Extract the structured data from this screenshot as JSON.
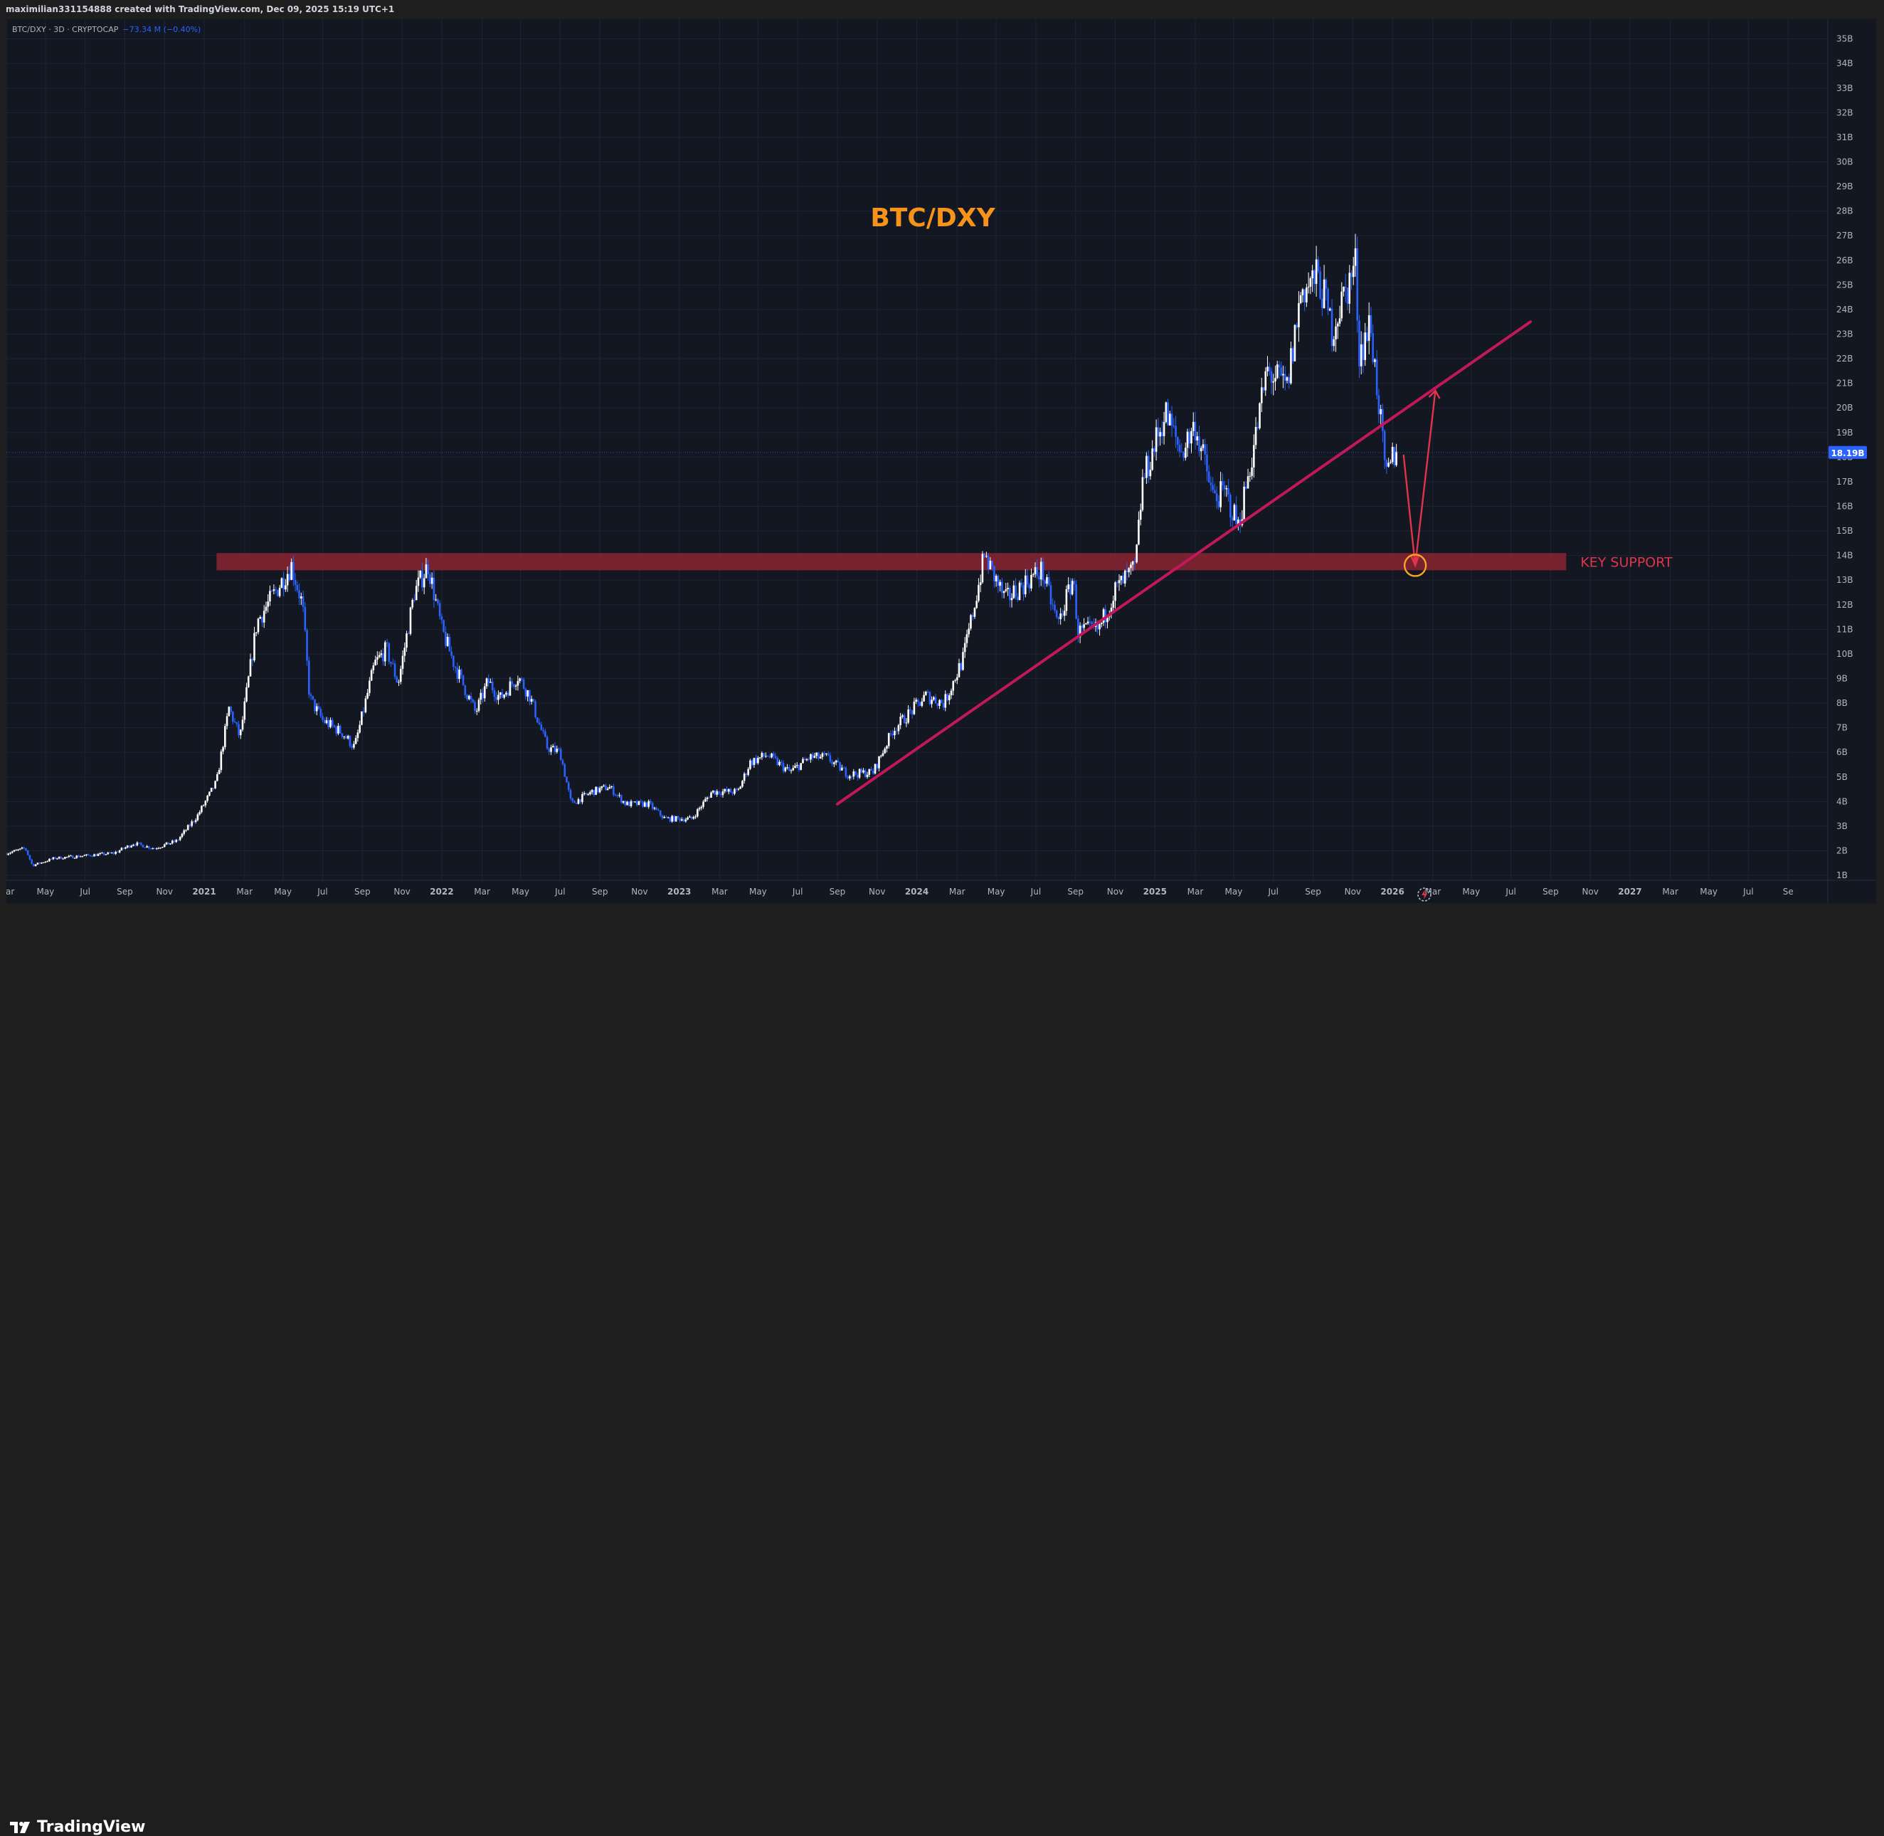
{
  "header": {
    "credit": "maximilian331154888 created with TradingView.com, Dec 09, 2025 15:19 UTC+1"
  },
  "legend": {
    "symbol": "BTC/DXY · 3D · CRYPTOCAP",
    "change": "−73.34 M (−0.40%)"
  },
  "footer": {
    "brand": "TradingView",
    "logo_icon": "tradingview-logo-icon"
  },
  "colors": {
    "background": "#131722",
    "candle_up": "#ffffff",
    "candle_down": "#2962ff",
    "support_zone": "#8b2433",
    "trendline": "#c2185b",
    "arrow": "#e0344a",
    "title": "#f7931a",
    "circle": "#f5a623",
    "price_tag": "#2962ff"
  },
  "chart_data": {
    "type": "candlestick",
    "title": "BTC/DXY",
    "y_unit": "B",
    "ylim": [
      0.8,
      35.8
    ],
    "y_ticks": [
      "35B",
      "34B",
      "33B",
      "32B",
      "31B",
      "30B",
      "29B",
      "28B",
      "27B",
      "26B",
      "25B",
      "24B",
      "23B",
      "22B",
      "21B",
      "20B",
      "19B",
      "18B",
      "17B",
      "16B",
      "15B",
      "14B",
      "13B",
      "12B",
      "11B",
      "10B",
      "9B",
      "8B",
      "7B",
      "6B",
      "5B",
      "4B",
      "3B",
      "2B",
      "1B"
    ],
    "x_ticks": [
      "Mar",
      "May",
      "Jul",
      "Sep",
      "Nov",
      "2021",
      "Mar",
      "May",
      "Jul",
      "Sep",
      "Nov",
      "2022",
      "Mar",
      "May",
      "Jul",
      "Sep",
      "Nov",
      "2023",
      "Mar",
      "May",
      "Jul",
      "Sep",
      "Nov",
      "2024",
      "Mar",
      "May",
      "Jul",
      "Sep",
      "Nov",
      "2025",
      "Mar",
      "May",
      "Jul",
      "Sep",
      "Nov",
      "2026",
      "Mar",
      "May",
      "Jul",
      "Sep",
      "Nov",
      "2027",
      "Mar",
      "May",
      "Jul",
      "Se"
    ],
    "x_start": "2020-02-01",
    "x_end": "2027-10-01",
    "current_price_label": "18.19B",
    "current_price": 18.19,
    "price_path": [
      [
        "2020-02-01",
        1.9
      ],
      [
        "2020-03-01",
        2.1
      ],
      [
        "2020-03-12",
        1.4
      ],
      [
        "2020-04-15",
        1.7
      ],
      [
        "2020-06-01",
        1.8
      ],
      [
        "2020-07-15",
        1.9
      ],
      [
        "2020-08-15",
        2.3
      ],
      [
        "2020-09-15",
        2.1
      ],
      [
        "2020-10-20",
        2.4
      ],
      [
        "2020-11-20",
        3.4
      ],
      [
        "2020-12-20",
        4.8
      ],
      [
        "2021-01-08",
        7.8
      ],
      [
        "2021-01-25",
        6.6
      ],
      [
        "2021-02-20",
        11.3
      ],
      [
        "2021-03-15",
        12.3
      ],
      [
        "2021-04-14",
        13.6
      ],
      [
        "2021-05-01",
        12.0
      ],
      [
        "2021-05-12",
        8.2
      ],
      [
        "2021-06-01",
        7.3
      ],
      [
        "2021-07-01",
        6.8
      ],
      [
        "2021-07-20",
        6.2
      ],
      [
        "2021-08-20",
        9.6
      ],
      [
        "2021-09-07",
        10.2
      ],
      [
        "2021-09-25",
        8.8
      ],
      [
        "2021-10-20",
        12.5
      ],
      [
        "2021-11-10",
        13.6
      ],
      [
        "2021-12-01",
        11.0
      ],
      [
        "2021-12-20",
        9.6
      ],
      [
        "2022-01-22",
        7.6
      ],
      [
        "2022-02-10",
        8.9
      ],
      [
        "2022-03-01",
        8.2
      ],
      [
        "2022-03-28",
        9.1
      ],
      [
        "2022-04-15",
        8.3
      ],
      [
        "2022-05-12",
        6.2
      ],
      [
        "2022-06-01",
        6.0
      ],
      [
        "2022-06-18",
        3.9
      ],
      [
        "2022-07-20",
        4.4
      ],
      [
        "2022-08-15",
        4.6
      ],
      [
        "2022-09-10",
        3.9
      ],
      [
        "2022-10-15",
        3.9
      ],
      [
        "2022-11-09",
        3.3
      ],
      [
        "2022-12-20",
        3.3
      ],
      [
        "2023-01-20",
        4.4
      ],
      [
        "2023-03-01",
        4.4
      ],
      [
        "2023-03-20",
        5.6
      ],
      [
        "2023-04-15",
        5.9
      ],
      [
        "2023-05-20",
        5.2
      ],
      [
        "2023-06-20",
        5.8
      ],
      [
        "2023-07-15",
        5.8
      ],
      [
        "2023-08-18",
        5.1
      ],
      [
        "2023-09-25",
        5.2
      ],
      [
        "2023-10-25",
        6.9
      ],
      [
        "2023-11-20",
        7.6
      ],
      [
        "2023-12-15",
        8.3
      ],
      [
        "2024-01-12",
        8.0
      ],
      [
        "2024-02-10",
        9.8
      ],
      [
        "2024-03-01",
        12.3
      ],
      [
        "2024-03-14",
        14.0
      ],
      [
        "2024-04-15",
        12.2
      ],
      [
        "2024-05-20",
        13.0
      ],
      [
        "2024-06-10",
        13.4
      ],
      [
        "2024-07-05",
        11.2
      ],
      [
        "2024-07-28",
        13.1
      ],
      [
        "2024-08-05",
        10.9
      ],
      [
        "2024-09-06",
        11.0
      ],
      [
        "2024-10-01",
        12.6
      ],
      [
        "2024-11-01",
        13.5
      ],
      [
        "2024-11-12",
        17.0
      ],
      [
        "2024-12-17",
        19.8
      ],
      [
        "2025-01-10",
        18.2
      ],
      [
        "2025-02-01",
        19.3
      ],
      [
        "2025-02-28",
        16.4
      ],
      [
        "2025-03-20",
        16.5
      ],
      [
        "2025-04-08",
        15.2
      ],
      [
        "2025-05-01",
        18.3
      ],
      [
        "2025-05-22",
        21.5
      ],
      [
        "2025-06-22",
        20.8
      ],
      [
        "2025-07-14",
        24.8
      ],
      [
        "2025-08-10",
        25.3
      ],
      [
        "2025-08-30",
        23.2
      ],
      [
        "2025-10-06",
        25.9
      ],
      [
        "2025-10-10",
        22.2
      ],
      [
        "2025-10-28",
        23.4
      ],
      [
        "2025-11-10",
        20.2
      ],
      [
        "2025-11-21",
        17.0
      ],
      [
        "2025-12-01",
        18.0
      ],
      [
        "2025-12-09",
        18.19
      ]
    ],
    "annotations": {
      "support_zone": {
        "y_low": 13.4,
        "y_high": 14.1,
        "x_start": "2020-12-20",
        "x_end": "2026-08-25",
        "label": "KEY SUPPORT"
      },
      "trendline": {
        "start": [
          "2023-08-01",
          3.9
        ],
        "end": [
          "2026-07-01",
          23.5
        ]
      },
      "projected_path": [
        [
          "2025-12-18",
          18.1
        ],
        [
          "2026-01-05",
          13.6
        ],
        [
          "2026-02-05",
          20.7
        ]
      ],
      "target_circle": [
        "2026-01-05",
        13.6
      ]
    }
  }
}
